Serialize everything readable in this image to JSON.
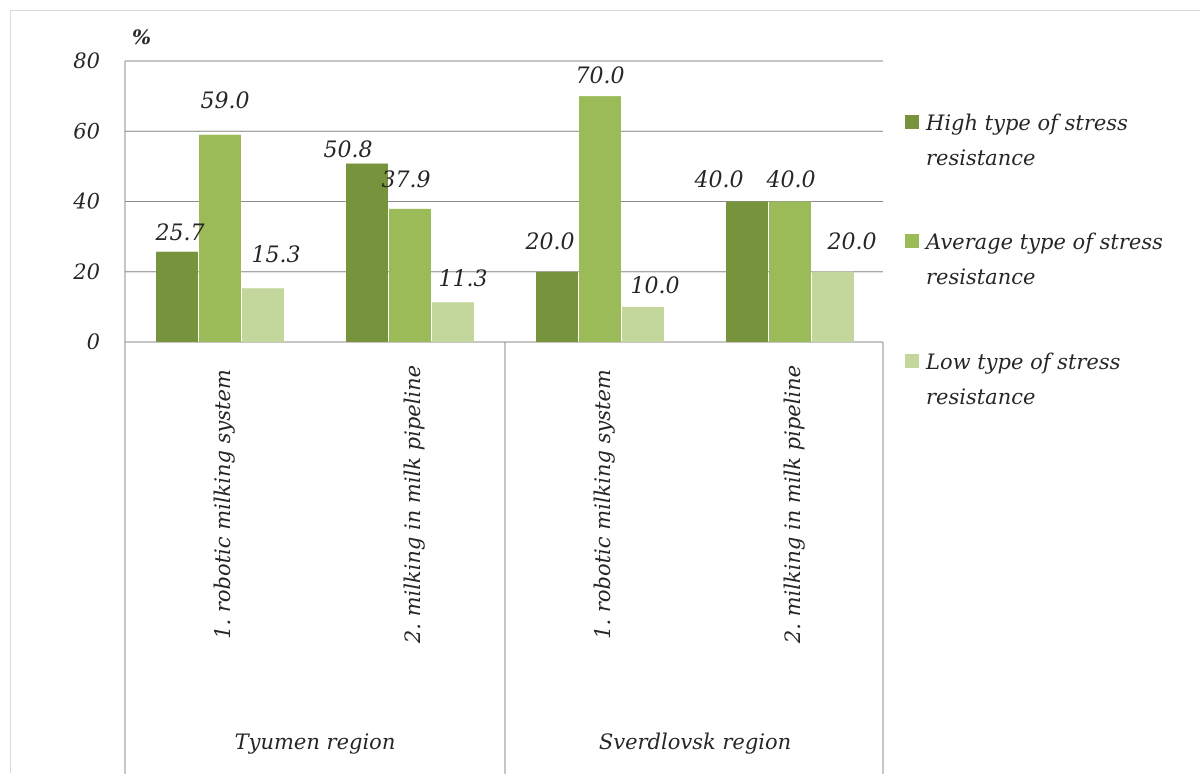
{
  "chart_data": {
    "type": "bar",
    "ylabel": "%",
    "ylim": [
      0,
      80
    ],
    "yticks": [
      "80",
      "60",
      "40",
      "20",
      "0"
    ],
    "groups": [
      "Tyumen region",
      "Sverdlovsk region"
    ],
    "categories": [
      "1. robotic milking system",
      "2. milking in milk pipeline",
      "1. robotic milking system",
      "2. milking in milk pipeline"
    ],
    "series": [
      {
        "name": "High type of stress resistance",
        "values": [
          25.7,
          50.8,
          20.0,
          40.0
        ]
      },
      {
        "name": "Average type of stress resistance",
        "values": [
          59.0,
          37.9,
          70.0,
          40.0
        ]
      },
      {
        "name": "Low type of stress resistance",
        "values": [
          15.3,
          11.3,
          10.0,
          20.0
        ]
      }
    ],
    "data_labels": [
      [
        "25.7",
        "50.8",
        "20.0",
        "40.0"
      ],
      [
        "59.0",
        "37.9",
        "70.0",
        "40.0"
      ],
      [
        "15.3",
        "11.3",
        "10.0",
        "20.0"
      ]
    ],
    "legend_lines": [
      [
        "High type of stress",
        "resistance"
      ],
      [
        "Average type of stress",
        "resistance"
      ],
      [
        "Low type of stress",
        "resistance"
      ]
    ],
    "colors": [
      "#77933c",
      "#9bbb59",
      "#c3d69b"
    ],
    "gridlines": true,
    "legend_position": "right"
  }
}
